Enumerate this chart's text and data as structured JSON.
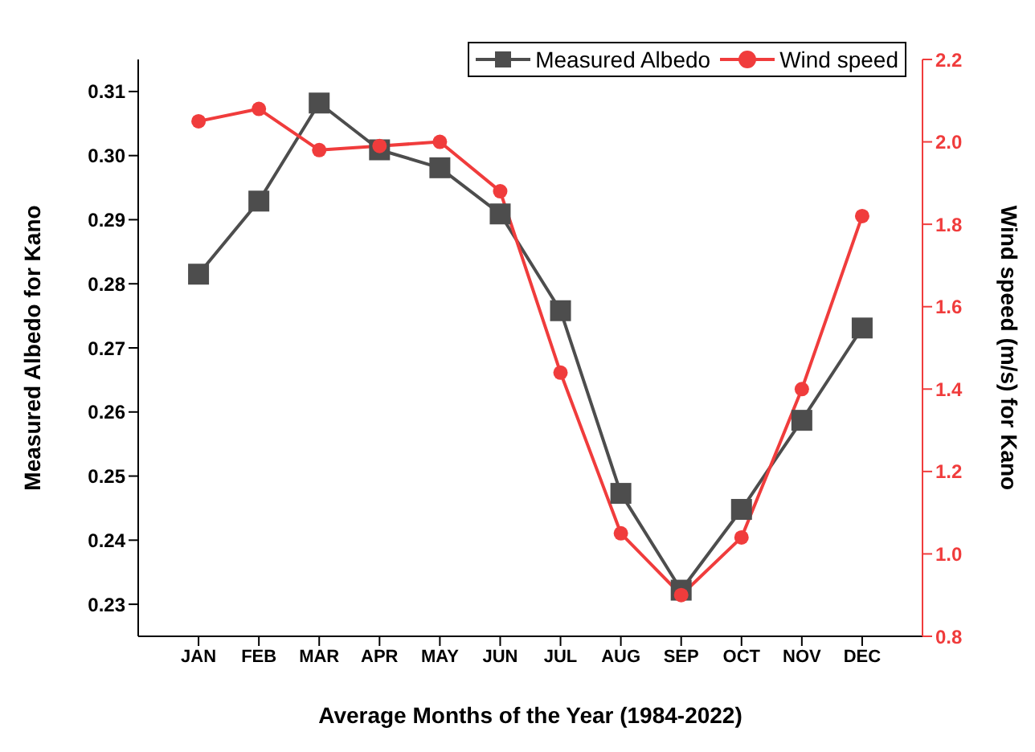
{
  "chart_data": {
    "type": "line",
    "xlabel": "Average Months of the Year (1984-2022)",
    "ylabel": "Measured Albedo for Kano",
    "y2label": "Wind speed (m/s) for Kano",
    "categories": [
      "JAN",
      "FEB",
      "MAR",
      "APR",
      "MAY",
      "JUN",
      "JUL",
      "AUG",
      "SEP",
      "OCT",
      "NOV",
      "DEC"
    ],
    "series": [
      {
        "name": "Measured Albedo",
        "color": "#4d4d4d",
        "marker": "square",
        "values": [
          0.2815,
          0.2929,
          0.3082,
          0.3009,
          0.2981,
          0.2909,
          0.2758,
          0.2473,
          0.2322,
          0.2448,
          0.2587,
          0.2731
        ]
      },
      {
        "name": "Wind speed",
        "color": "#f03c3c",
        "marker": "circle",
        "axis": "y2",
        "values": [
          2.05,
          2.08,
          1.98,
          1.99,
          2.0,
          1.88,
          1.44,
          1.05,
          0.9,
          1.04,
          1.4,
          1.82
        ]
      }
    ],
    "ylim": [
      0.225,
      0.315
    ],
    "yticks": [
      0.23,
      0.24,
      0.25,
      0.26,
      0.27,
      0.28,
      0.29,
      {
        "value": 0.3,
        "label": "0.30"
      },
      0.31
    ],
    "y2lim": [
      0.8,
      2.2
    ],
    "y2ticks": [
      0.8,
      {
        "value": 1,
        "label": "1.0"
      },
      1.2,
      1.4,
      1.6,
      1.8,
      {
        "value": 2,
        "label": "2.0"
      },
      2.2
    ],
    "legend": "top right",
    "grid": false
  }
}
